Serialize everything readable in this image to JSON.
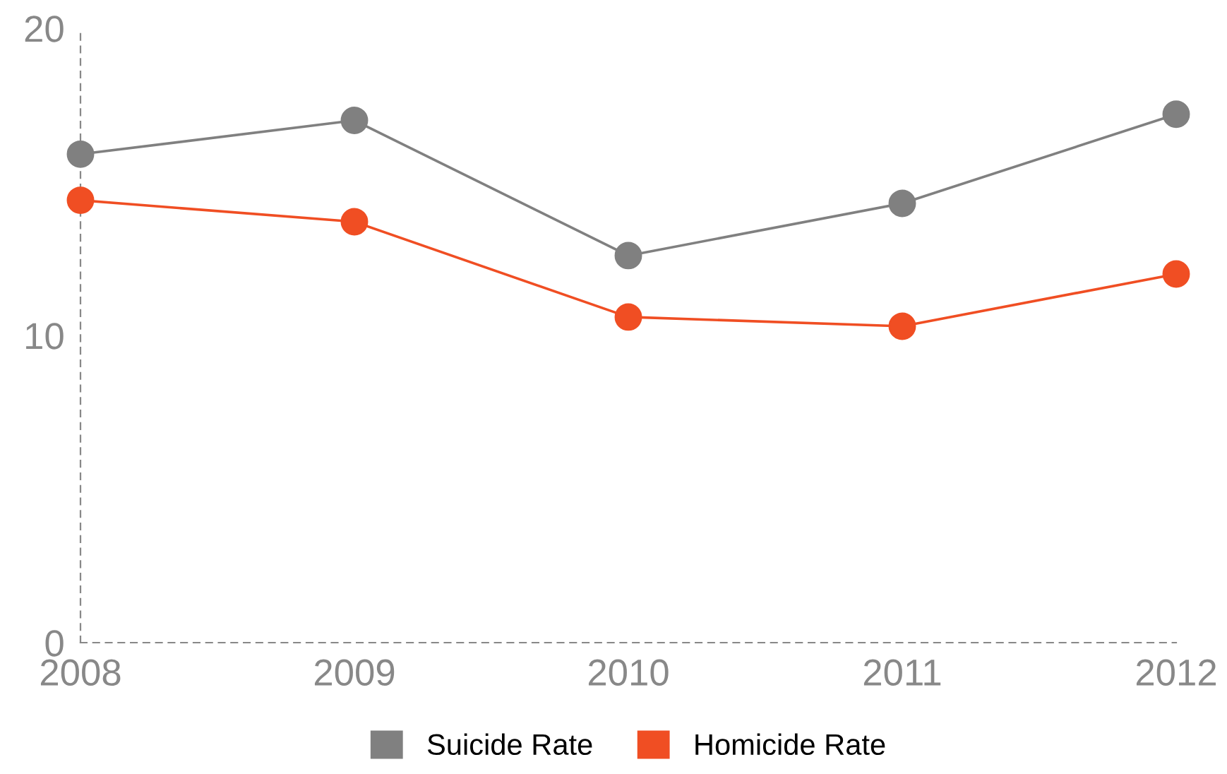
{
  "chart_data": {
    "type": "line",
    "categories": [
      "2008",
      "2009",
      "2010",
      "2011",
      "2012"
    ],
    "series": [
      {
        "name": "Suicide Rate",
        "color": "#808080",
        "values": [
          15.9,
          17.0,
          12.6,
          14.3,
          17.2
        ]
      },
      {
        "name": "Homicide Rate",
        "color": "#f04e23",
        "values": [
          14.4,
          13.7,
          10.6,
          10.3,
          12.0
        ]
      }
    ],
    "ylim": [
      0,
      20
    ],
    "yticks": [
      0,
      10,
      20
    ],
    "grid": false,
    "legend": "bottom",
    "marker": "circle",
    "line_style": "solid"
  }
}
